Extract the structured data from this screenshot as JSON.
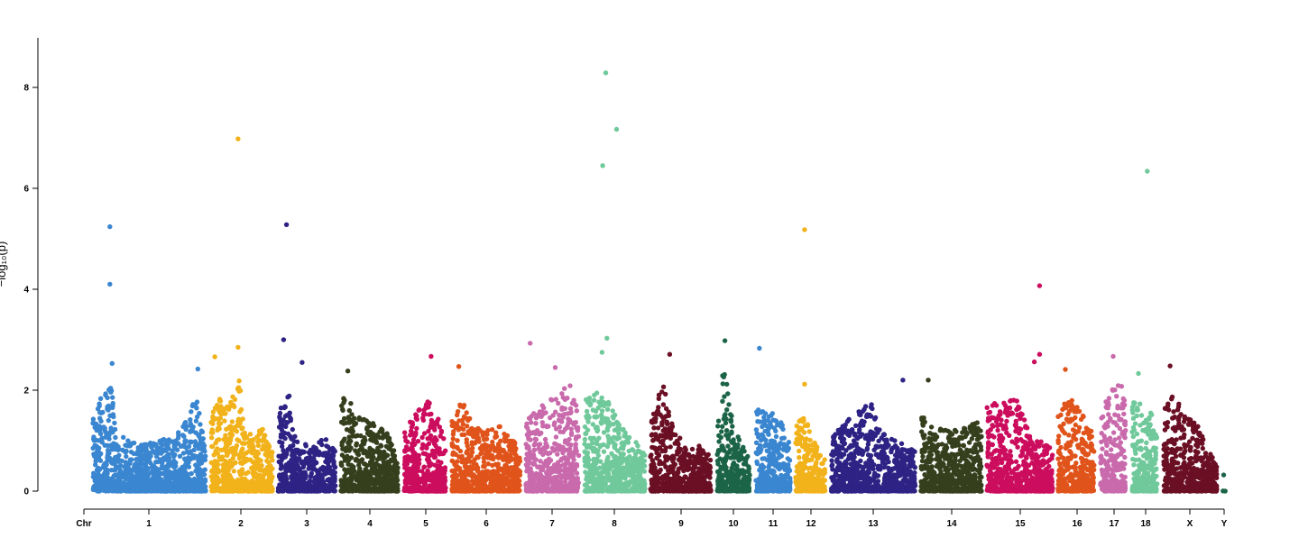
{
  "chart_data": {
    "type": "scatter",
    "title": "",
    "xlabel": "Chr",
    "ylabel": "−log₁₀(p)",
    "ylim": [
      0,
      9
    ],
    "yticks": [
      0,
      2,
      4,
      6,
      8
    ],
    "grid": false,
    "chromosomes": [
      "1",
      "2",
      "3",
      "4",
      "5",
      "6",
      "7",
      "8",
      "9",
      "10",
      "11",
      "12",
      "13",
      "14",
      "15",
      "16",
      "17",
      "18",
      "X",
      "Y"
    ],
    "colors": {
      "1": "#3a86d0",
      "2": "#f2b21b",
      "3": "#2e2385",
      "4": "#363f1d",
      "5": "#cc0d5e",
      "6": "#e0541b",
      "7": "#c96aac",
      "8": "#70c99b",
      "9": "#6a0f24",
      "10": "#1c6448",
      "11": "#3a86d0",
      "12": "#f2b21b",
      "13": "#2e2385",
      "14": "#363f1d",
      "15": "#cc0d5e",
      "16": "#e0541b",
      "17": "#c96aac",
      "18": "#70c99b",
      "X": "#6a0f24",
      "Y": "#1c6448"
    },
    "peak_points": [
      {
        "chr": "1",
        "pos": 0.15,
        "y": 5.24
      },
      {
        "chr": "1",
        "pos": 0.15,
        "y": 4.1
      },
      {
        "chr": "1",
        "pos": 0.17,
        "y": 2.53
      },
      {
        "chr": "1",
        "pos": 0.93,
        "y": 2.42
      },
      {
        "chr": "2",
        "pos": 0.44,
        "y": 6.98
      },
      {
        "chr": "2",
        "pos": 0.44,
        "y": 2.85
      },
      {
        "chr": "2",
        "pos": 0.06,
        "y": 2.66
      },
      {
        "chr": "3",
        "pos": 0.15,
        "y": 5.28
      },
      {
        "chr": "3",
        "pos": 0.1,
        "y": 3.0
      },
      {
        "chr": "3",
        "pos": 0.42,
        "y": 2.55
      },
      {
        "chr": "4",
        "pos": 0.12,
        "y": 2.38
      },
      {
        "chr": "5",
        "pos": 0.65,
        "y": 2.67
      },
      {
        "chr": "6",
        "pos": 0.1,
        "y": 2.47
      },
      {
        "chr": "7",
        "pos": 0.08,
        "y": 2.93
      },
      {
        "chr": "7",
        "pos": 0.55,
        "y": 2.45
      },
      {
        "chr": "8",
        "pos": 0.35,
        "y": 8.29
      },
      {
        "chr": "8",
        "pos": 0.53,
        "y": 7.17
      },
      {
        "chr": "8",
        "pos": 0.3,
        "y": 6.45
      },
      {
        "chr": "8",
        "pos": 0.37,
        "y": 3.03
      },
      {
        "chr": "8",
        "pos": 0.29,
        "y": 2.75
      },
      {
        "chr": "9",
        "pos": 0.32,
        "y": 2.71
      },
      {
        "chr": "10",
        "pos": 0.24,
        "y": 2.98
      },
      {
        "chr": "11",
        "pos": 0.1,
        "y": 2.83
      },
      {
        "chr": "12",
        "pos": 0.3,
        "y": 5.18
      },
      {
        "chr": "12",
        "pos": 0.3,
        "y": 2.12
      },
      {
        "chr": "13",
        "pos": 0.85,
        "y": 2.2
      },
      {
        "chr": "14",
        "pos": 0.12,
        "y": 2.2
      },
      {
        "chr": "15",
        "pos": 0.8,
        "y": 4.07
      },
      {
        "chr": "15",
        "pos": 0.8,
        "y": 2.71
      },
      {
        "chr": "15",
        "pos": 0.72,
        "y": 2.56
      },
      {
        "chr": "16",
        "pos": 0.2,
        "y": 2.41
      },
      {
        "chr": "17",
        "pos": 0.5,
        "y": 2.67
      },
      {
        "chr": "18",
        "pos": 0.6,
        "y": 6.34
      },
      {
        "chr": "18",
        "pos": 0.25,
        "y": 2.33
      },
      {
        "chr": "X",
        "pos": 0.12,
        "y": 2.48
      },
      {
        "chr": "Y",
        "pos": 0.5,
        "y": 0.32
      }
    ]
  }
}
